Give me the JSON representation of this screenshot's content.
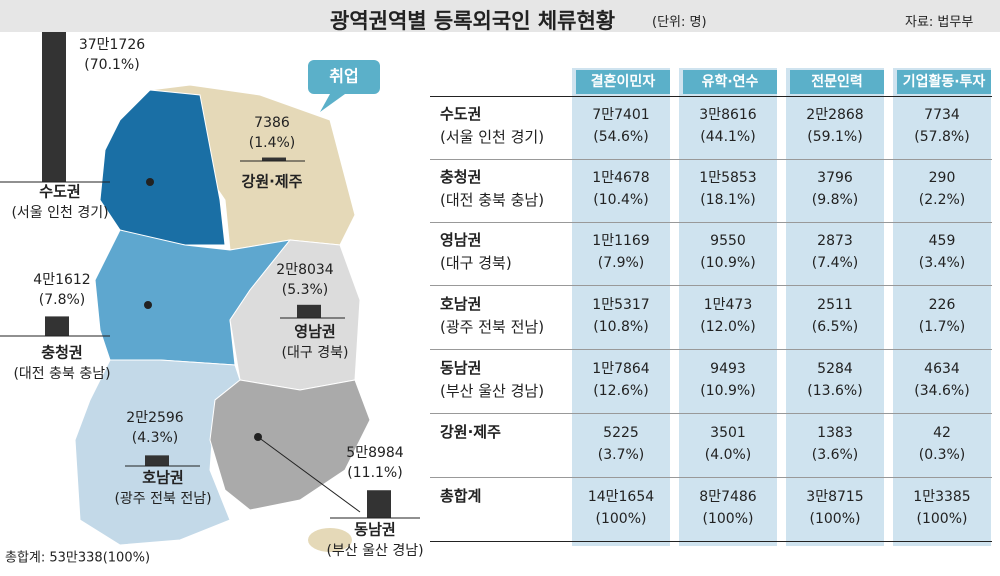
{
  "header": {
    "title": "광역권역별 등록외국인 체류현황",
    "unit": "(단위: 명)",
    "source": "자료: 법무부"
  },
  "map": {
    "tag": "취업",
    "total": "총합계: 53만338(100%)",
    "regions": [
      {
        "name": "수도권",
        "areas": "(서울 인천 경기)",
        "value": 371726,
        "label": "37만1726",
        "share": "(70.1%)"
      },
      {
        "name": "강원·제주",
        "value": 7386,
        "label": "7386",
        "share": "(1.4%)"
      },
      {
        "name": "충청권",
        "areas": "(대전 충북 충남)",
        "value": 41612,
        "label": "4만1612",
        "share": "(7.8%)"
      },
      {
        "name": "영남권",
        "areas": "(대구 경북)",
        "value": 28034,
        "label": "2만8034",
        "share": "(5.3%)"
      },
      {
        "name": "호남권",
        "areas": "(광주 전북 전남)",
        "value": 22596,
        "label": "2만2596",
        "share": "(4.3%)"
      },
      {
        "name": "동남권",
        "areas": "(부산 울산 경남)",
        "value": 58984,
        "label": "5만8984",
        "share": "(11.1%)"
      }
    ]
  },
  "table": {
    "columns": [
      "결혼이민자",
      "유학·연수",
      "전문인력",
      "기업활동·투자"
    ],
    "rows": [
      {
        "name": "수도권",
        "areas": "(서울 인천 경기)",
        "cells": [
          [
            "7만7401",
            "(54.6%)"
          ],
          [
            "3만8616",
            "(44.1%)"
          ],
          [
            "2만2868",
            "(59.1%)"
          ],
          [
            "7734",
            "(57.8%)"
          ]
        ]
      },
      {
        "name": "충청권",
        "areas": "(대전 충북 충남)",
        "cells": [
          [
            "1만4678",
            "(10.4%)"
          ],
          [
            "1만5853",
            "(18.1%)"
          ],
          [
            "3796",
            "(9.8%)"
          ],
          [
            "290",
            "(2.2%)"
          ]
        ]
      },
      {
        "name": "영남권",
        "areas": "(대구 경북)",
        "cells": [
          [
            "1만1169",
            "(7.9%)"
          ],
          [
            "9550",
            "(10.9%)"
          ],
          [
            "2873",
            "(7.4%)"
          ],
          [
            "459",
            "(3.4%)"
          ]
        ]
      },
      {
        "name": "호남권",
        "areas": "(광주 전북 전남)",
        "cells": [
          [
            "1만5317",
            "(10.8%)"
          ],
          [
            "1만473",
            "(12.0%)"
          ],
          [
            "2511",
            "(6.5%)"
          ],
          [
            "226",
            "(1.7%)"
          ]
        ]
      },
      {
        "name": "동남권",
        "areas": "(부산 울산 경남)",
        "cells": [
          [
            "1만7864",
            "(12.6%)"
          ],
          [
            "9493",
            "(10.9%)"
          ],
          [
            "5284",
            "(13.6%)"
          ],
          [
            "4634",
            "(34.6%)"
          ]
        ]
      },
      {
        "name": "강원·제주",
        "cells": [
          [
            "5225",
            "(3.7%)"
          ],
          [
            "3501",
            "(4.0%)"
          ],
          [
            "1383",
            "(3.6%)"
          ],
          [
            "42",
            "(0.3%)"
          ]
        ]
      },
      {
        "name": "총합계",
        "cells": [
          [
            "14만1654",
            "(100%)"
          ],
          [
            "8만7486",
            "(100%)"
          ],
          [
            "3만8715",
            "(100%)"
          ],
          [
            "1만3385",
            "(100%)"
          ]
        ]
      }
    ]
  }
}
